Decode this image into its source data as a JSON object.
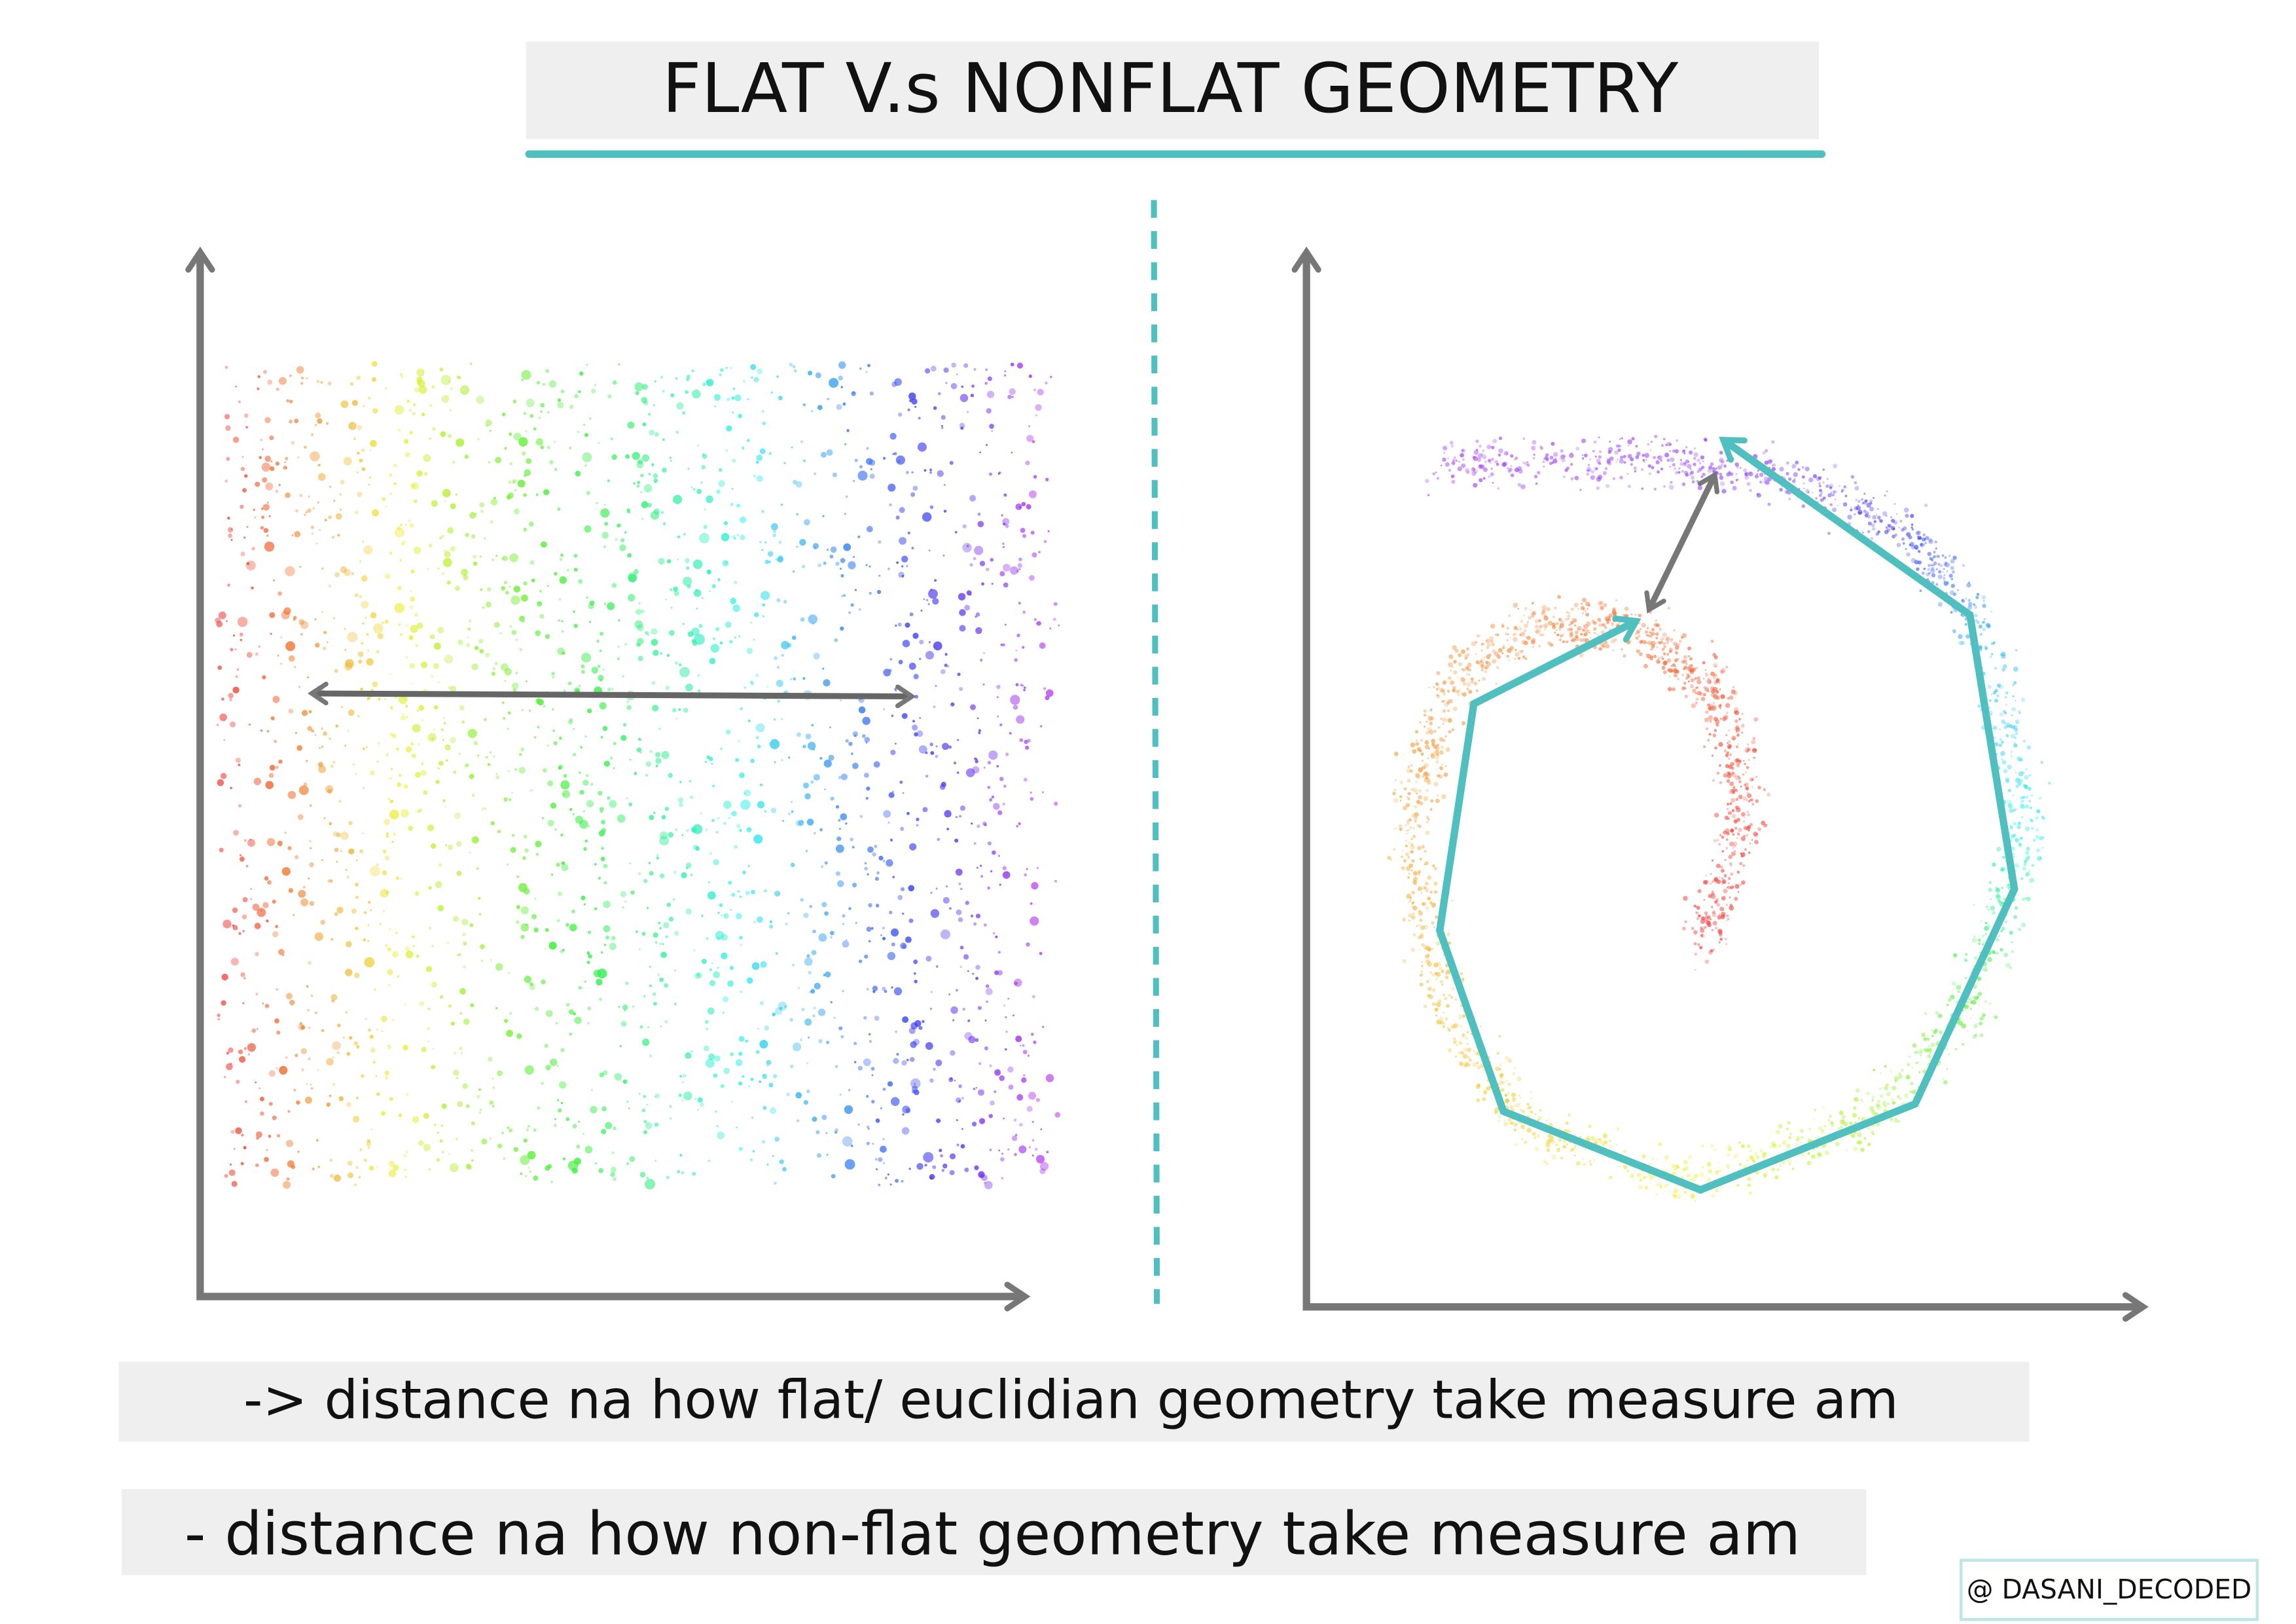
{
  "header": {
    "title": "FLAT V.s NONFLAT GEOMETRY"
  },
  "captions": [
    "-> distance na how flat/ euclidian geometry take measure am",
    "- distance na how non-flat geometry take measure am"
  ],
  "credit": "@ DASANI_DECODED"
}
